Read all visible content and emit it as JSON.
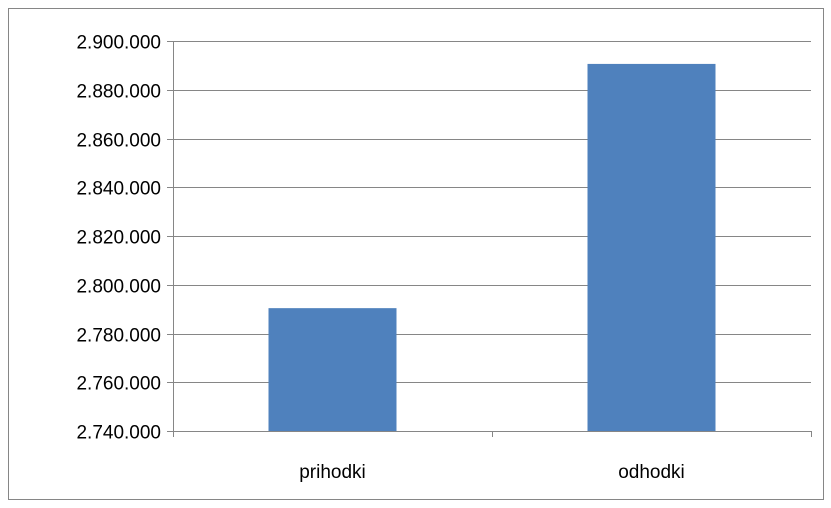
{
  "chart_data": {
    "type": "bar",
    "categories": [
      "prihodki",
      "odhodki"
    ],
    "series": [
      {
        "values": [
          2790400,
          2890600
        ]
      }
    ],
    "ylim": [
      2740000,
      2900000
    ],
    "yticks": [
      2740000,
      2760000,
      2780000,
      2800000,
      2820000,
      2840000,
      2860000,
      2880000,
      2900000
    ],
    "ytick_labels": [
      "2.740.000",
      "2.760.000",
      "2.780.000",
      "2.800.000",
      "2.820.000",
      "2.840.000",
      "2.860.000",
      "2.880.000",
      "2.900.000"
    ],
    "grid": true,
    "legend": "none",
    "bar_color": "#4F81BD",
    "gridline_color": "#868686"
  }
}
